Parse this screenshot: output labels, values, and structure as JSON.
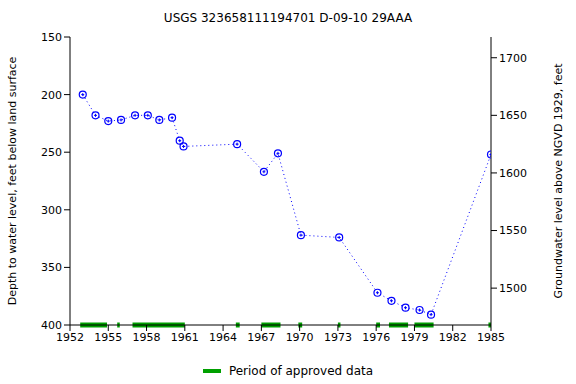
{
  "chart_data": {
    "type": "line",
    "title": "USGS 323658111194701 D-09-10 29AAA",
    "y_label": "Depth to water level, feet below land surface",
    "y2_label": "Groundwater level above NGVD 1929, feet",
    "x": [
      1953.0,
      1954.0,
      1955.0,
      1956.0,
      1957.1,
      1958.1,
      1959.0,
      1960.0,
      1960.6,
      1960.9,
      1965.1,
      1967.2,
      1968.3,
      1970.1,
      1973.1,
      1976.1,
      1977.2,
      1978.3,
      1979.4,
      1980.3,
      1985.0
    ],
    "values": [
      200,
      218,
      223,
      222,
      218,
      218,
      222,
      220,
      240,
      245,
      243,
      267,
      251,
      322,
      324,
      372,
      379,
      385,
      387,
      391,
      252
    ],
    "color": "#0000ff",
    "marker": "circle",
    "line_style": "dotted",
    "xlim": [
      1952,
      1985
    ],
    "xticks": [
      1952,
      1955,
      1958,
      1961,
      1964,
      1967,
      1970,
      1973,
      1976,
      1979,
      1982,
      1985
    ],
    "ylim": [
      400,
      150
    ],
    "yticks": [
      150,
      200,
      250,
      300,
      350,
      400
    ],
    "y2lim": [
      1468,
      1718
    ],
    "y2ticks": [
      1500,
      1550,
      1600,
      1650,
      1700
    ],
    "grid": false,
    "legend": "bottom",
    "approved_periods": {
      "name": "Period of approved data",
      "color": "#00a000",
      "ranges": [
        [
          1952.8,
          1954.9
        ],
        [
          1955.7,
          1955.9
        ],
        [
          1956.9,
          1961.0
        ],
        [
          1965.0,
          1965.3
        ],
        [
          1967.0,
          1968.5
        ],
        [
          1969.9,
          1970.2
        ],
        [
          1973.0,
          1973.2
        ],
        [
          1976.0,
          1976.3
        ],
        [
          1977.0,
          1978.5
        ],
        [
          1979.0,
          1980.5
        ],
        [
          1984.8,
          1985.0
        ]
      ]
    }
  }
}
